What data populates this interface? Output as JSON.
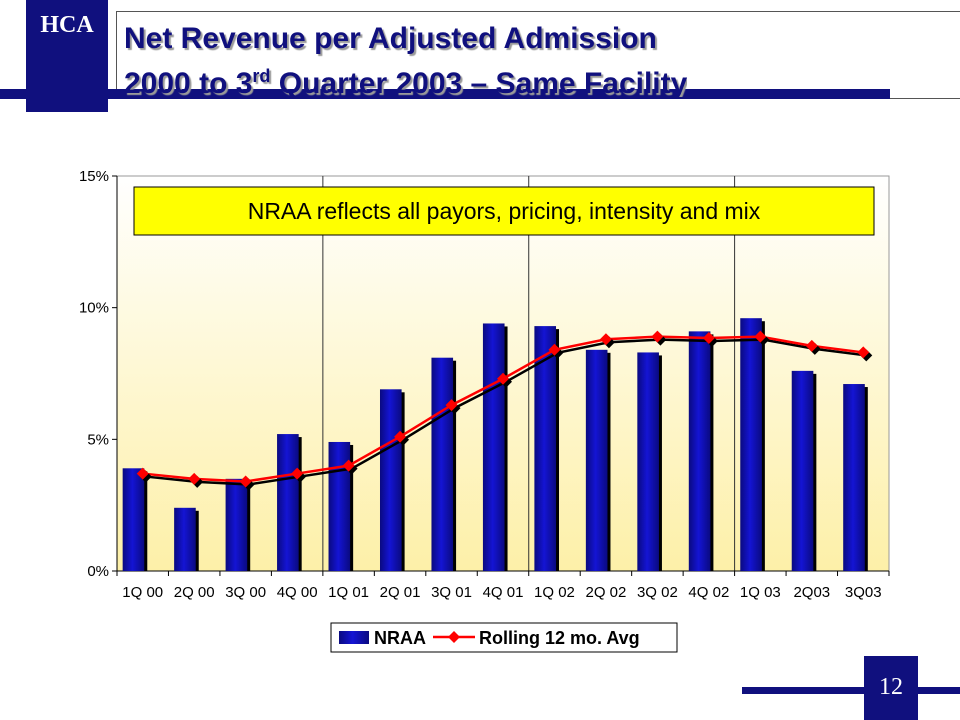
{
  "header": {
    "logo": "HCA",
    "title_line1": "Net Revenue per Adjusted Admission",
    "title_line2_prefix": "2000 to 3",
    "title_line2_sup": "rd",
    "title_line2_suffix": " Quarter 2003 – Same Facility"
  },
  "page_number": "12",
  "colors": {
    "brand_navy": "#10107e",
    "bar_blue": "#1414d4",
    "line_red": "#ff0000",
    "marker_red": "#ff0000",
    "note_yellow": "#ffff00",
    "plot_top": "#ffffff",
    "plot_bottom": "#fdf0a8"
  },
  "chart_data": {
    "type": "bar",
    "categories": [
      "1Q 00",
      "2Q 00",
      "3Q 00",
      "4Q 00",
      "1Q 01",
      "2Q 01",
      "3Q 01",
      "4Q 01",
      "1Q 02",
      "2Q 02",
      "3Q 02",
      "4Q 02",
      "1Q 03",
      "2Q03",
      "3Q03"
    ],
    "series": [
      {
        "name": "NRAA",
        "type": "bar",
        "values": [
          3.9,
          2.4,
          3.5,
          5.2,
          4.9,
          6.9,
          8.1,
          9.4,
          9.3,
          8.4,
          8.3,
          9.1,
          9.6,
          7.6,
          7.1
        ]
      },
      {
        "name": "Rolling 12 mo. Avg",
        "type": "line",
        "values": [
          3.7,
          3.5,
          3.4,
          3.7,
          4.0,
          5.1,
          6.3,
          7.3,
          8.4,
          8.8,
          8.9,
          8.85,
          8.9,
          8.55,
          8.3
        ]
      }
    ],
    "ylim": [
      0,
      15
    ],
    "yticks": [
      0,
      5,
      10,
      15
    ],
    "ytick_labels": [
      "0%",
      "5%",
      "10%",
      "15%"
    ],
    "year_dividers_after_index": [
      3,
      7,
      11
    ],
    "legend": {
      "placement": "bottom-center",
      "entries": [
        "NRAA",
        "Rolling 12 mo. Avg"
      ]
    },
    "annotation": "NRAA reflects all payors, pricing, intensity and mix",
    "grid": false
  }
}
